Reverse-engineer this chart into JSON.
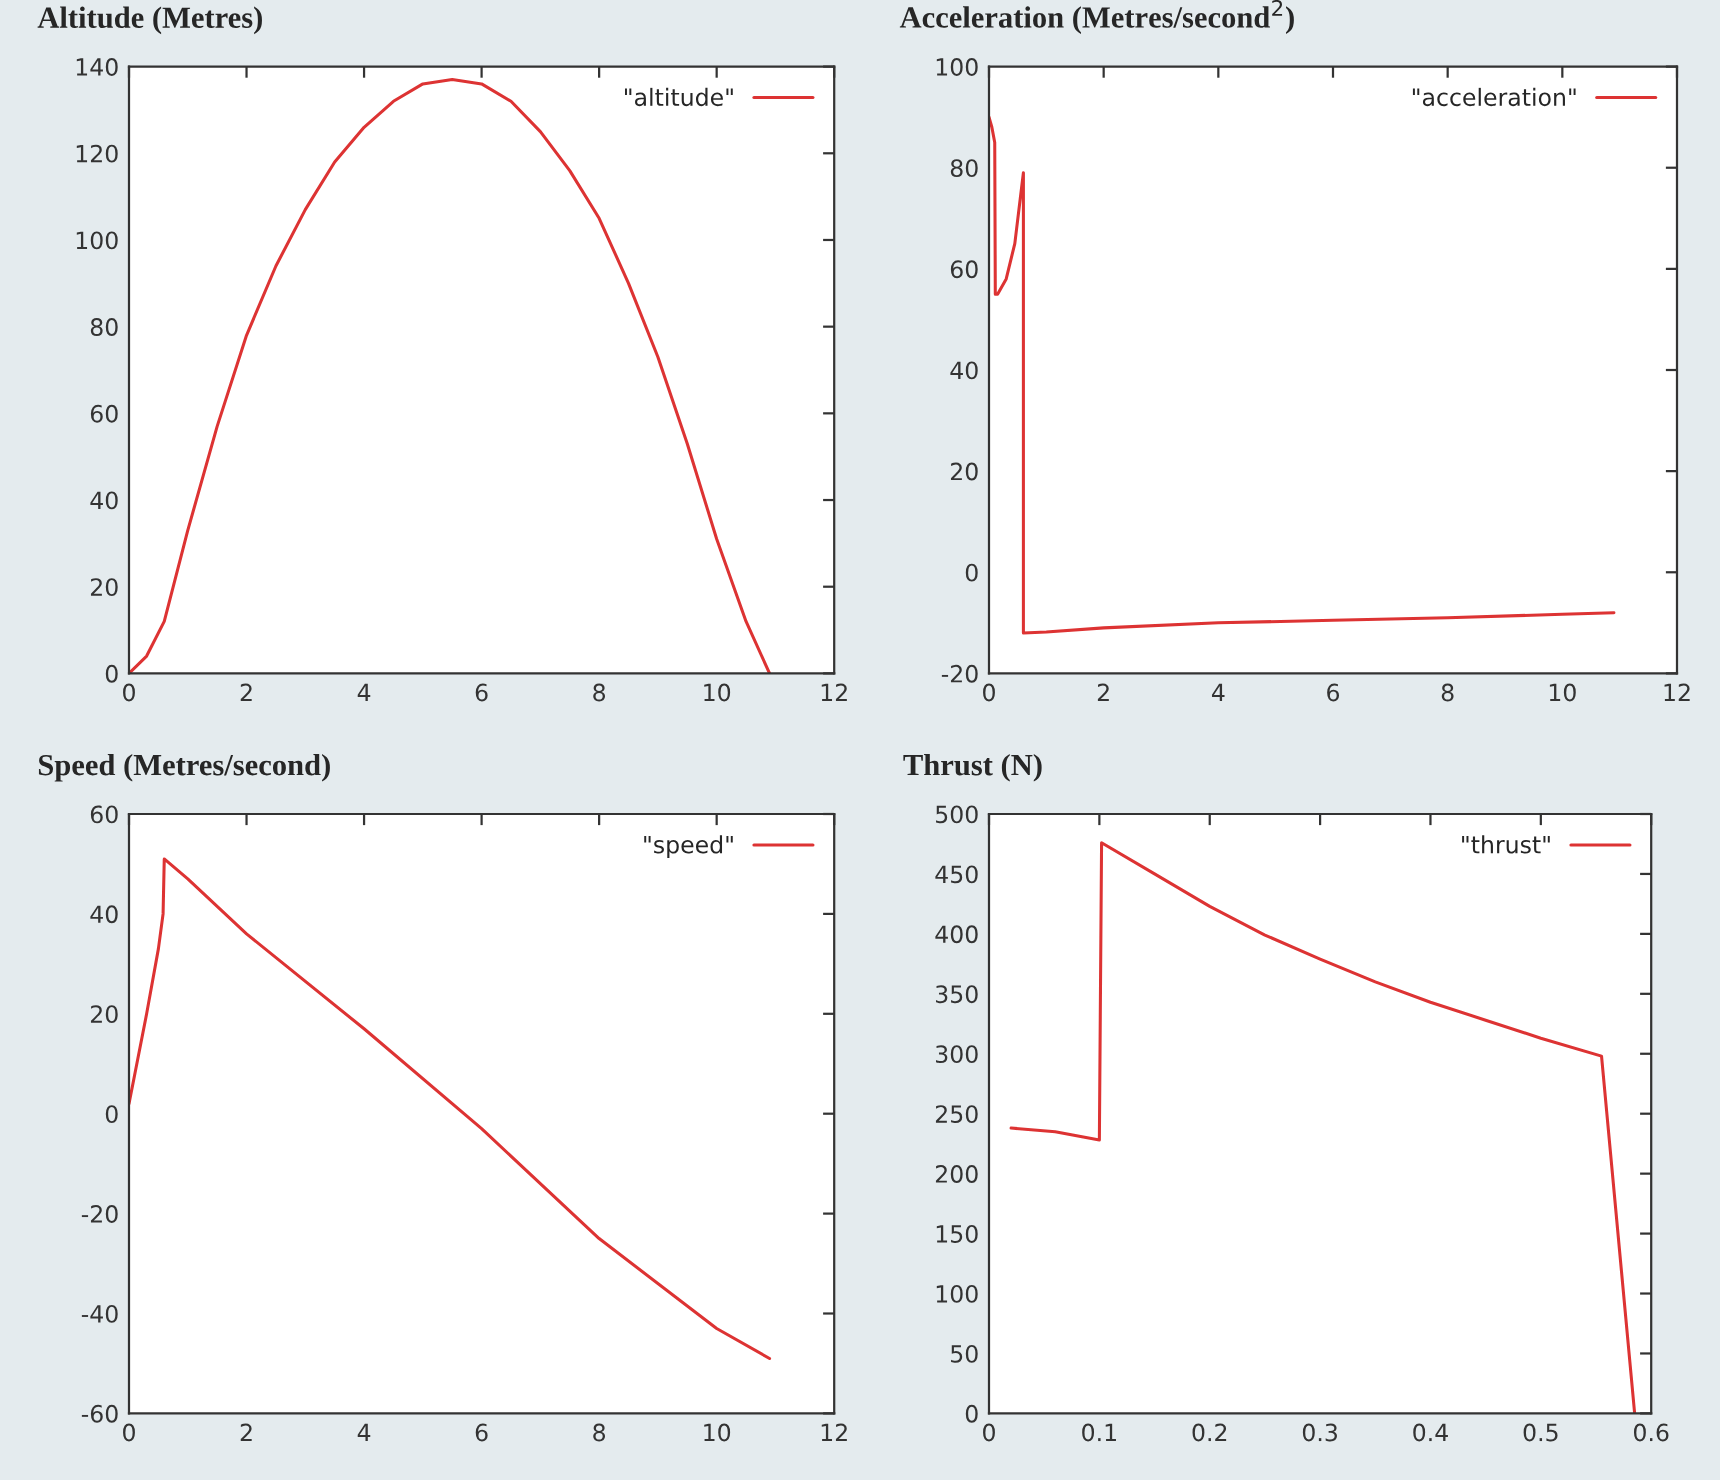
{
  "chart_data": [
    {
      "type": "line",
      "title": "Altitude (Metres)",
      "legend": "top right",
      "grid": false,
      "xlim": [
        0,
        12
      ],
      "xticks": [
        0,
        2,
        4,
        6,
        8,
        10,
        12
      ],
      "ylim": [
        0,
        140
      ],
      "yticks": [
        0,
        20,
        40,
        60,
        80,
        100,
        120,
        140
      ],
      "series": [
        {
          "name": "\"altitude\"",
          "color": "#dd3333",
          "x": [
            0,
            0.3,
            0.6,
            1,
            1.5,
            2,
            2.5,
            3,
            3.5,
            4,
            4.5,
            5,
            5.5,
            6,
            6.5,
            7,
            7.5,
            8,
            8.5,
            9,
            9.5,
            10,
            10.5,
            10.9
          ],
          "values": [
            0,
            4,
            12,
            33,
            57,
            78,
            94,
            107,
            118,
            126,
            132,
            136,
            137,
            136,
            132,
            125,
            116,
            105,
            90,
            73,
            53,
            31,
            12,
            0
          ]
        }
      ]
    },
    {
      "type": "line",
      "title": "Acceleration (Metres/second$^{2}$)",
      "legend": "top right",
      "grid": false,
      "xlim": [
        0,
        12
      ],
      "xticks": [
        0,
        2,
        4,
        6,
        8,
        10,
        12
      ],
      "ylim": [
        -20,
        100
      ],
      "yticks": [
        -20,
        0,
        20,
        40,
        60,
        80,
        100
      ],
      "series": [
        {
          "name": "\"acceleration\"",
          "color": "#dd3333",
          "x": [
            0,
            0.05,
            0.1,
            0.11,
            0.15,
            0.3,
            0.45,
            0.6,
            0.6,
            1,
            2,
            4,
            6,
            8,
            10,
            10.9
          ],
          "values": [
            90,
            88,
            85,
            55,
            55,
            58,
            65,
            79,
            -12,
            -11.8,
            -11,
            -10,
            -9.5,
            -9,
            -8.3,
            -8
          ]
        }
      ]
    },
    {
      "type": "line",
      "title": "Speed (Metres/second)",
      "legend": "top right",
      "grid": false,
      "xlim": [
        0,
        12
      ],
      "xticks": [
        0,
        2,
        4,
        6,
        8,
        10,
        12
      ],
      "ylim": [
        -60,
        60
      ],
      "yticks": [
        -60,
        -40,
        -20,
        0,
        20,
        40,
        60
      ],
      "series": [
        {
          "name": "\"speed\"",
          "color": "#dd3333",
          "x": [
            0,
            0.1,
            0.3,
            0.5,
            0.58,
            0.6,
            1,
            2,
            4,
            6,
            8,
            10,
            10.9
          ],
          "values": [
            2,
            8,
            20,
            33,
            40,
            51,
            47,
            36,
            17,
            -3,
            -25,
            -43,
            -49
          ]
        }
      ]
    },
    {
      "type": "line",
      "title": "Thrust (N)",
      "legend": "top right",
      "grid": false,
      "xlim": [
        0,
        0.6
      ],
      "xticks": [
        0,
        0.1,
        0.2,
        0.3,
        0.4,
        0.5,
        0.6
      ],
      "ylim": [
        0,
        500
      ],
      "yticks": [
        0,
        50,
        100,
        150,
        200,
        250,
        300,
        350,
        400,
        450,
        500
      ],
      "series": [
        {
          "name": "\"thrust\"",
          "color": "#dd3333",
          "x": [
            0.02,
            0.06,
            0.1,
            0.102,
            0.15,
            0.2,
            0.25,
            0.3,
            0.35,
            0.4,
            0.45,
            0.5,
            0.555,
            0.585
          ],
          "values": [
            238,
            235,
            228,
            476,
            450,
            423,
            399,
            379,
            360,
            343,
            328,
            313,
            298,
            0
          ]
        }
      ]
    }
  ]
}
